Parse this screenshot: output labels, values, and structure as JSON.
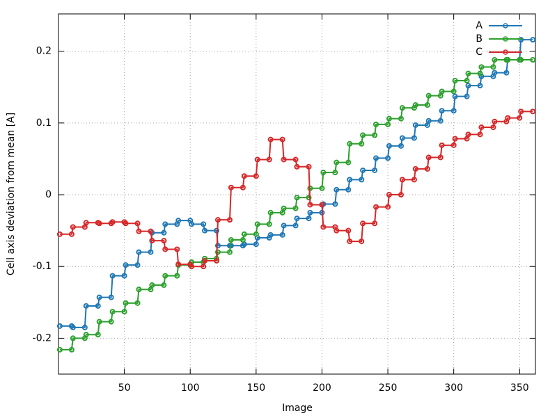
{
  "chart_data": {
    "type": "line",
    "xlabel": "Image",
    "ylabel": "Cell axis deviation from mean [A]",
    "xlim": [
      0,
      362
    ],
    "ylim": [
      -0.25,
      0.252
    ],
    "xticks": [
      50,
      100,
      150,
      200,
      250,
      300,
      350
    ],
    "yticks": [
      -0.2,
      -0.1,
      0,
      0.1,
      0.2
    ],
    "grid": true,
    "legend": "top-right",
    "x": [
      1,
      10,
      11,
      20,
      21,
      30,
      31,
      40,
      41,
      50,
      51,
      60,
      61,
      70,
      71,
      80,
      81,
      90,
      91,
      100,
      101,
      110,
      111,
      120,
      121,
      130,
      131,
      140,
      141,
      150,
      151,
      160,
      161,
      170,
      171,
      180,
      181,
      190,
      191,
      200,
      201,
      210,
      211,
      220,
      221,
      230,
      231,
      240,
      241,
      250,
      251,
      260,
      261,
      270,
      271,
      280,
      281,
      290,
      291,
      300,
      301,
      310,
      311,
      320,
      321,
      330,
      331,
      340,
      341,
      350,
      351,
      360
    ],
    "series": [
      {
        "name": "A",
        "color": "#1f77b4",
        "values": [
          -0.183,
          -0.183,
          -0.185,
          -0.185,
          -0.155,
          -0.155,
          -0.143,
          -0.143,
          -0.113,
          -0.113,
          -0.098,
          -0.098,
          -0.08,
          -0.08,
          -0.053,
          -0.053,
          -0.041,
          -0.041,
          -0.036,
          -0.036,
          -0.041,
          -0.041,
          -0.05,
          -0.05,
          -0.071,
          -0.071,
          -0.071,
          -0.071,
          -0.069,
          -0.069,
          -0.06,
          -0.06,
          -0.056,
          -0.056,
          -0.043,
          -0.043,
          -0.033,
          -0.033,
          -0.025,
          -0.025,
          -0.013,
          -0.013,
          0.007,
          0.007,
          0.021,
          0.021,
          0.034,
          0.034,
          0.051,
          0.051,
          0.068,
          0.068,
          0.079,
          0.079,
          0.097,
          0.097,
          0.103,
          0.103,
          0.117,
          0.117,
          0.137,
          0.137,
          0.152,
          0.152,
          0.165,
          0.165,
          0.17,
          0.17,
          0.188,
          0.188,
          0.216,
          0.216
        ]
      },
      {
        "name": "B",
        "color": "#2ca02c",
        "values": [
          -0.216,
          -0.216,
          -0.2,
          -0.2,
          -0.195,
          -0.195,
          -0.177,
          -0.177,
          -0.163,
          -0.163,
          -0.151,
          -0.151,
          -0.132,
          -0.132,
          -0.126,
          -0.126,
          -0.113,
          -0.113,
          -0.098,
          -0.098,
          -0.094,
          -0.094,
          -0.089,
          -0.089,
          -0.08,
          -0.08,
          -0.063,
          -0.063,
          -0.055,
          -0.055,
          -0.041,
          -0.041,
          -0.025,
          -0.025,
          -0.019,
          -0.019,
          -0.004,
          -0.004,
          0.009,
          0.009,
          0.031,
          0.031,
          0.045,
          0.045,
          0.071,
          0.071,
          0.083,
          0.083,
          0.098,
          0.098,
          0.106,
          0.106,
          0.121,
          0.121,
          0.125,
          0.125,
          0.138,
          0.138,
          0.144,
          0.144,
          0.159,
          0.159,
          0.169,
          0.169,
          0.178,
          0.178,
          0.188,
          0.188,
          0.188,
          0.188,
          0.188,
          0.188
        ]
      },
      {
        "name": "C",
        "color": "#d62728",
        "values": [
          -0.055,
          -0.055,
          -0.045,
          -0.045,
          -0.039,
          -0.039,
          -0.04,
          -0.04,
          -0.038,
          -0.038,
          -0.04,
          -0.04,
          -0.051,
          -0.051,
          -0.064,
          -0.064,
          -0.076,
          -0.076,
          -0.097,
          -0.097,
          -0.1,
          -0.1,
          -0.092,
          -0.092,
          -0.035,
          -0.035,
          0.01,
          0.01,
          0.026,
          0.026,
          0.049,
          0.049,
          0.077,
          0.077,
          0.049,
          0.049,
          0.039,
          0.039,
          -0.014,
          -0.014,
          -0.045,
          -0.045,
          -0.05,
          -0.05,
          -0.065,
          -0.065,
          -0.04,
          -0.04,
          -0.017,
          -0.017,
          0,
          0,
          0.021,
          0.021,
          0.036,
          0.036,
          0.052,
          0.052,
          0.069,
          0.069,
          0.078,
          0.078,
          0.084,
          0.084,
          0.094,
          0.094,
          0.102,
          0.102,
          0.107,
          0.107,
          0.116,
          0.116
        ]
      }
    ]
  }
}
